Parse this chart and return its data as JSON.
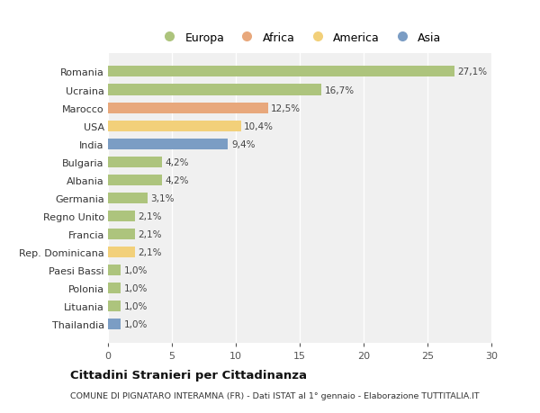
{
  "categories": [
    "Romania",
    "Ucraina",
    "Marocco",
    "USA",
    "India",
    "Bulgaria",
    "Albania",
    "Germania",
    "Regno Unito",
    "Francia",
    "Rep. Dominicana",
    "Paesi Bassi",
    "Polonia",
    "Lituania",
    "Thailandia"
  ],
  "values": [
    27.1,
    16.7,
    12.5,
    10.4,
    9.4,
    4.2,
    4.2,
    3.1,
    2.1,
    2.1,
    2.1,
    1.0,
    1.0,
    1.0,
    1.0
  ],
  "labels": [
    "27,1%",
    "16,7%",
    "12,5%",
    "10,4%",
    "9,4%",
    "4,2%",
    "4,2%",
    "3,1%",
    "2,1%",
    "2,1%",
    "2,1%",
    "1,0%",
    "1,0%",
    "1,0%",
    "1,0%"
  ],
  "colors": [
    "#adc47d",
    "#adc47d",
    "#e8a87c",
    "#f2d07a",
    "#7b9dc4",
    "#adc47d",
    "#adc47d",
    "#adc47d",
    "#adc47d",
    "#adc47d",
    "#f2d07a",
    "#adc47d",
    "#adc47d",
    "#adc47d",
    "#7b9dc4"
  ],
  "legend": [
    {
      "label": "Europa",
      "color": "#adc47d"
    },
    {
      "label": "Africa",
      "color": "#e8a87c"
    },
    {
      "label": "America",
      "color": "#f2d07a"
    },
    {
      "label": "Asia",
      "color": "#7b9dc4"
    }
  ],
  "title": "Cittadini Stranieri per Cittadinanza",
  "subtitle": "COMUNE DI PIGNATARO INTERAMNA (FR) - Dati ISTAT al 1° gennaio - Elaborazione TUTTITALIA.IT",
  "xlim": [
    0,
    30
  ],
  "xticks": [
    0,
    5,
    10,
    15,
    20,
    25,
    30
  ],
  "bg_color": "#ffffff",
  "plot_bg_color": "#f0f0f0",
  "grid_color": "#ffffff"
}
